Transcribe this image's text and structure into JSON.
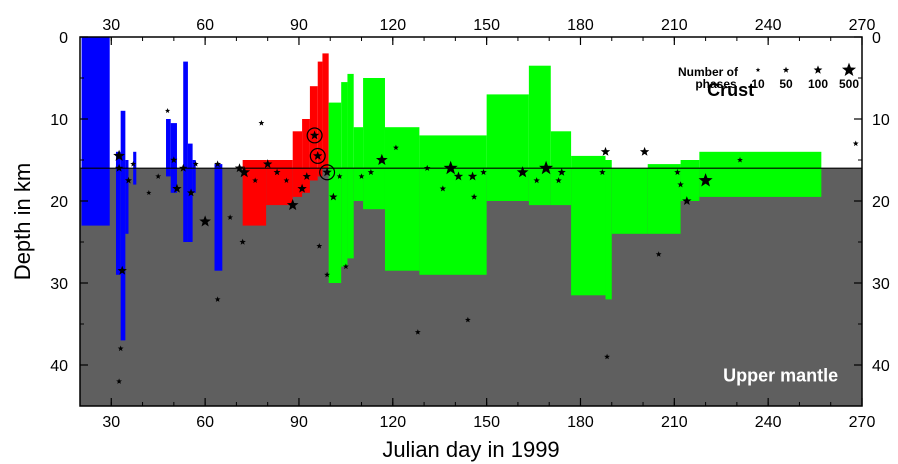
{
  "colors": {
    "mantle_fill": "#5f5f5f",
    "blue": "#0000ff",
    "red": "#ff0000",
    "green": "#00ff00",
    "star": "#000000",
    "moho_line": "#000000"
  },
  "chart_data": {
    "type": "bar",
    "xlabel": "Julian day in 1999",
    "ylabel": "Depth in km",
    "xlim": [
      20,
      270
    ],
    "ylim": [
      0,
      45
    ],
    "y_inverted": true,
    "x_ticks": [
      30,
      60,
      90,
      120,
      150,
      180,
      210,
      240,
      270
    ],
    "x_tick_labels": [
      "30",
      "60",
      "90",
      "120",
      "150",
      "180",
      "210",
      "240",
      "270"
    ],
    "y_ticks": [
      0,
      10,
      20,
      30,
      40
    ],
    "y_tick_labels": [
      "0",
      "10",
      "20",
      "30",
      "40"
    ],
    "moho_depth": 16,
    "regions": [
      {
        "label": "Crust",
        "x": 228,
        "y": 7.2
      },
      {
        "label": "Upper mantle",
        "x": 244,
        "y": 42
      }
    ],
    "legend": {
      "title_lines": [
        "Number of",
        "phases"
      ],
      "items": [
        {
          "label": "10",
          "star_scale": 0.2
        },
        {
          "label": "50",
          "star_scale": 0.35
        },
        {
          "label": "100",
          "star_scale": 0.55
        },
        {
          "label": "500",
          "star_scale": 1.0
        }
      ]
    },
    "bars": [
      {
        "color": "blue",
        "x0": 20.5,
        "x1": 29.5,
        "y0": 0,
        "y1": 23
      },
      {
        "color": "blue",
        "x0": 31.5,
        "x1": 33,
        "y0": 14,
        "y1": 29
      },
      {
        "color": "blue",
        "x0": 33,
        "x1": 34.5,
        "y0": 9,
        "y1": 37
      },
      {
        "color": "blue",
        "x0": 34.5,
        "x1": 35.5,
        "y0": 15,
        "y1": 24
      },
      {
        "color": "blue",
        "x0": 37,
        "x1": 38,
        "y0": 14,
        "y1": 18
      },
      {
        "color": "blue",
        "x0": 47.5,
        "x1": 49,
        "y0": 10,
        "y1": 17
      },
      {
        "color": "blue",
        "x0": 49,
        "x1": 51,
        "y0": 10.5,
        "y1": 19
      },
      {
        "color": "blue",
        "x0": 53,
        "x1": 54.5,
        "y0": 3,
        "y1": 25
      },
      {
        "color": "blue",
        "x0": 54.5,
        "x1": 56,
        "y0": 13,
        "y1": 25
      },
      {
        "color": "blue",
        "x0": 56,
        "x1": 57,
        "y0": 15,
        "y1": 19
      },
      {
        "color": "blue",
        "x0": 63,
        "x1": 65.5,
        "y0": 15.5,
        "y1": 28.5
      },
      {
        "color": "red",
        "x0": 72,
        "x1": 79.5,
        "y0": 15,
        "y1": 23
      },
      {
        "color": "red",
        "x0": 79.5,
        "x1": 88,
        "y0": 15,
        "y1": 20.5
      },
      {
        "color": "red",
        "x0": 88,
        "x1": 91,
        "y0": 11.5,
        "y1": 19.5
      },
      {
        "color": "red",
        "x0": 91,
        "x1": 93.5,
        "y0": 10,
        "y1": 19
      },
      {
        "color": "red",
        "x0": 93.5,
        "x1": 96,
        "y0": 6,
        "y1": 17.5
      },
      {
        "color": "red",
        "x0": 96,
        "x1": 97.5,
        "y0": 3,
        "y1": 17
      },
      {
        "color": "red",
        "x0": 97.5,
        "x1": 99.5,
        "y0": 2,
        "y1": 16
      },
      {
        "color": "green",
        "x0": 99.5,
        "x1": 103.5,
        "y0": 8,
        "y1": 30
      },
      {
        "color": "green",
        "x0": 103.5,
        "x1": 105.5,
        "y0": 5.5,
        "y1": 28
      },
      {
        "color": "green",
        "x0": 105.5,
        "x1": 107.5,
        "y0": 4.5,
        "y1": 27
      },
      {
        "color": "green",
        "x0": 107.5,
        "x1": 110.5,
        "y0": 11,
        "y1": 20
      },
      {
        "color": "green",
        "x0": 110.5,
        "x1": 117.5,
        "y0": 5,
        "y1": 21
      },
      {
        "color": "green",
        "x0": 117.5,
        "x1": 128.5,
        "y0": 11,
        "y1": 28.5
      },
      {
        "color": "green",
        "x0": 128.5,
        "x1": 150,
        "y0": 12,
        "y1": 29
      },
      {
        "color": "green",
        "x0": 150,
        "x1": 163.5,
        "y0": 7,
        "y1": 20
      },
      {
        "color": "green",
        "x0": 163.5,
        "x1": 170.5,
        "y0": 3.5,
        "y1": 20.5
      },
      {
        "color": "green",
        "x0": 170.5,
        "x1": 177,
        "y0": 11.5,
        "y1": 20.5
      },
      {
        "color": "green",
        "x0": 177,
        "x1": 188,
        "y0": 14.5,
        "y1": 31.5
      },
      {
        "color": "green",
        "x0": 188,
        "x1": 190,
        "y0": 15,
        "y1": 32
      },
      {
        "color": "green",
        "x0": 190,
        "x1": 201.5,
        "y0": 16,
        "y1": 24
      },
      {
        "color": "green",
        "x0": 201.5,
        "x1": 212,
        "y0": 15.5,
        "y1": 24
      },
      {
        "color": "green",
        "x0": 212,
        "x1": 218,
        "y0": 15,
        "y1": 20
      },
      {
        "color": "green",
        "x0": 218,
        "x1": 257,
        "y0": 14,
        "y1": 19.5
      }
    ],
    "events": [
      {
        "x": 32.5,
        "y": 14.5,
        "size": 0.8
      },
      {
        "x": 32.5,
        "y": 16,
        "size": 0.5
      },
      {
        "x": 33.5,
        "y": 28.5,
        "size": 0.6
      },
      {
        "x": 33,
        "y": 38,
        "size": 0.3
      },
      {
        "x": 32.5,
        "y": 42,
        "size": 0.3
      },
      {
        "x": 35.5,
        "y": 17.5,
        "size": 0.4
      },
      {
        "x": 37,
        "y": 15.5,
        "size": 0.3
      },
      {
        "x": 42,
        "y": 19,
        "size": 0.25
      },
      {
        "x": 45,
        "y": 17,
        "size": 0.3
      },
      {
        "x": 48,
        "y": 9,
        "size": 0.25
      },
      {
        "x": 50,
        "y": 15,
        "size": 0.4
      },
      {
        "x": 51,
        "y": 18.5,
        "size": 0.6
      },
      {
        "x": 53,
        "y": 16,
        "size": 0.5
      },
      {
        "x": 55.5,
        "y": 19,
        "size": 0.5
      },
      {
        "x": 57,
        "y": 15.5,
        "size": 0.3
      },
      {
        "x": 60,
        "y": 22.5,
        "size": 0.8
      },
      {
        "x": 64,
        "y": 15.5,
        "size": 0.4
      },
      {
        "x": 64,
        "y": 32,
        "size": 0.3
      },
      {
        "x": 68,
        "y": 22,
        "size": 0.3
      },
      {
        "x": 71,
        "y": 16,
        "size": 0.6
      },
      {
        "x": 72.5,
        "y": 16.5,
        "size": 0.8
      },
      {
        "x": 72,
        "y": 25,
        "size": 0.35
      },
      {
        "x": 76,
        "y": 17.5,
        "size": 0.3
      },
      {
        "x": 78,
        "y": 10.5,
        "size": 0.3
      },
      {
        "x": 80,
        "y": 15.5,
        "size": 0.6
      },
      {
        "x": 83,
        "y": 16.5,
        "size": 0.4
      },
      {
        "x": 86,
        "y": 17.5,
        "size": 0.3
      },
      {
        "x": 88,
        "y": 20.5,
        "size": 0.8
      },
      {
        "x": 91,
        "y": 18.5,
        "size": 0.6
      },
      {
        "x": 92.5,
        "y": 17,
        "size": 0.5
      },
      {
        "x": 95,
        "y": 12,
        "size": 0.6,
        "circled": true
      },
      {
        "x": 96,
        "y": 14.5,
        "size": 0.6,
        "circled": true
      },
      {
        "x": 99,
        "y": 16.5,
        "size": 0.6,
        "circled": true
      },
      {
        "x": 96.5,
        "y": 25.5,
        "size": 0.3
      },
      {
        "x": 99,
        "y": 29,
        "size": 0.3
      },
      {
        "x": 101,
        "y": 19.5,
        "size": 0.5
      },
      {
        "x": 103,
        "y": 17,
        "size": 0.3
      },
      {
        "x": 105,
        "y": 28,
        "size": 0.3
      },
      {
        "x": 110,
        "y": 17,
        "size": 0.3
      },
      {
        "x": 113,
        "y": 16.5,
        "size": 0.35
      },
      {
        "x": 116.5,
        "y": 15,
        "size": 0.8
      },
      {
        "x": 121,
        "y": 13.5,
        "size": 0.3
      },
      {
        "x": 128,
        "y": 36,
        "size": 0.3
      },
      {
        "x": 131,
        "y": 16,
        "size": 0.35
      },
      {
        "x": 136,
        "y": 18.5,
        "size": 0.35
      },
      {
        "x": 138.5,
        "y": 16,
        "size": 1.0
      },
      {
        "x": 141,
        "y": 17,
        "size": 0.6
      },
      {
        "x": 144,
        "y": 34.5,
        "size": 0.3
      },
      {
        "x": 145.5,
        "y": 17,
        "size": 0.6
      },
      {
        "x": 146,
        "y": 19.5,
        "size": 0.35
      },
      {
        "x": 149,
        "y": 16.5,
        "size": 0.35
      },
      {
        "x": 161.5,
        "y": 16.5,
        "size": 0.8
      },
      {
        "x": 166,
        "y": 17.5,
        "size": 0.35
      },
      {
        "x": 169,
        "y": 16,
        "size": 1.0
      },
      {
        "x": 173,
        "y": 17.5,
        "size": 0.35
      },
      {
        "x": 174,
        "y": 16.5,
        "size": 0.5
      },
      {
        "x": 188,
        "y": 14,
        "size": 0.6
      },
      {
        "x": 187,
        "y": 16.5,
        "size": 0.35
      },
      {
        "x": 188.5,
        "y": 39,
        "size": 0.3
      },
      {
        "x": 200.5,
        "y": 14,
        "size": 0.6
      },
      {
        "x": 205,
        "y": 26.5,
        "size": 0.3
      },
      {
        "x": 211,
        "y": 16.5,
        "size": 0.35
      },
      {
        "x": 212,
        "y": 18,
        "size": 0.35
      },
      {
        "x": 214,
        "y": 20,
        "size": 0.6
      },
      {
        "x": 220,
        "y": 17.5,
        "size": 1.0
      },
      {
        "x": 231,
        "y": 15,
        "size": 0.3
      },
      {
        "x": 268,
        "y": 13,
        "size": 0.3
      }
    ]
  }
}
